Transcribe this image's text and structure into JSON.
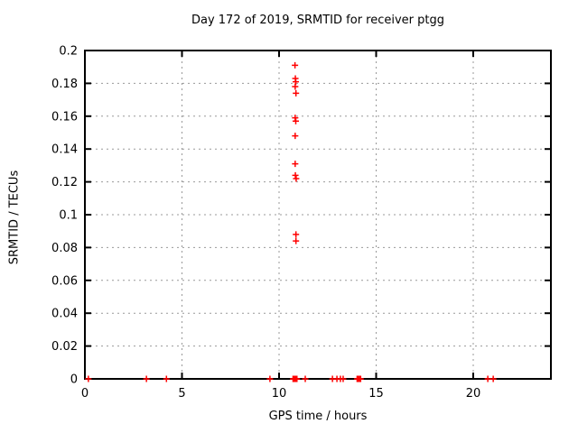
{
  "chart_data": {
    "type": "scatter",
    "title": "Day 172 of 2019, SRMTID for receiver ptgg",
    "xlabel": "GPS time / hours",
    "ylabel": "SRMTID / TECUs",
    "xlim": [
      0,
      24
    ],
    "ylim": [
      0,
      0.2
    ],
    "x_ticks": [
      0,
      5,
      10,
      15,
      20
    ],
    "x_tick_labels": [
      "0",
      "5",
      "10",
      "15",
      "20"
    ],
    "y_ticks": [
      0,
      0.02,
      0.04,
      0.06,
      0.08,
      0.1,
      0.12,
      0.14,
      0.16,
      0.18,
      0.2
    ],
    "y_tick_labels": [
      "0",
      "0.02",
      "0.04",
      "0.06",
      "0.08",
      "0.1",
      "0.12",
      "0.14",
      "0.16",
      "0.18",
      "0.2"
    ],
    "grid": true,
    "legend": "none",
    "colors": {
      "marker": "#ff0000",
      "grid": "#999999",
      "border": "#000000",
      "background": "#ffffff"
    },
    "marker": {
      "shape": "plus",
      "size": 7
    },
    "series": [
      {
        "name": "SRMTID",
        "points": [
          [
            10.82,
            0.191
          ],
          [
            10.84,
            0.183
          ],
          [
            10.86,
            0.181
          ],
          [
            10.83,
            0.178
          ],
          [
            10.87,
            0.174
          ],
          [
            10.83,
            0.159
          ],
          [
            10.86,
            0.157
          ],
          [
            10.83,
            0.148
          ],
          [
            10.83,
            0.131
          ],
          [
            10.84,
            0.124
          ],
          [
            10.88,
            0.122
          ],
          [
            10.87,
            0.088
          ],
          [
            10.87,
            0.084
          ],
          [
            0.18,
            0
          ],
          [
            3.17,
            0
          ],
          [
            4.2,
            0
          ],
          [
            9.53,
            0
          ],
          [
            10.72,
            0
          ],
          [
            10.76,
            0
          ],
          [
            10.8,
            0
          ],
          [
            10.84,
            0
          ],
          [
            10.88,
            0
          ],
          [
            10.92,
            0
          ],
          [
            11.35,
            0
          ],
          [
            12.75,
            0
          ],
          [
            12.98,
            0
          ],
          [
            13.16,
            0
          ],
          [
            13.3,
            0
          ],
          [
            14.02,
            0
          ],
          [
            14.08,
            0
          ],
          [
            14.14,
            0
          ],
          [
            14.2,
            0
          ],
          [
            20.75,
            0
          ],
          [
            21.03,
            0
          ]
        ]
      }
    ]
  }
}
